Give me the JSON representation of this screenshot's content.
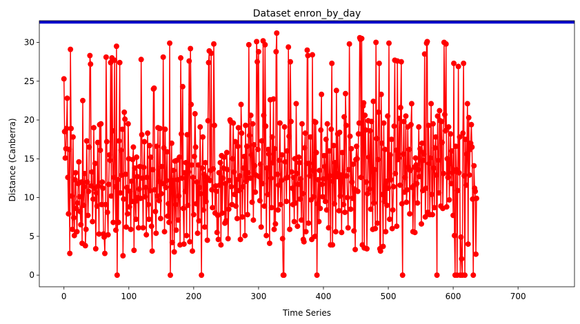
{
  "chart_data": {
    "type": "line",
    "title": "Dataset enron_by_day",
    "xlabel": "Time Series",
    "ylabel": "Distance (Canberra)",
    "xlim": [
      -38,
      787
    ],
    "ylim": [
      -1.5,
      32.8
    ],
    "xticks": [
      0,
      100,
      200,
      300,
      400,
      500,
      600,
      700
    ],
    "yticks": [
      0,
      5,
      10,
      15,
      20,
      25,
      30
    ],
    "grid": false,
    "legend": "none",
    "series": [
      {
        "color": "#ff0000",
        "marker": "circle",
        "x_start": 0,
        "x_step": 1,
        "values": [
          25.3,
          18.5,
          15.1,
          16.3,
          18.9,
          22.8,
          12.6,
          7.9,
          16.2,
          2.8,
          29.1,
          18.9,
          10.2,
          5.9,
          17.8,
          7.4,
          5.1,
          12.3,
          13.2,
          8.6,
          5.6,
          9.3,
          11.8,
          14.6,
          10.1,
          8.2,
          6.5,
          12.0,
          4.1,
          22.5,
          9.0,
          11.4,
          13.1,
          3.8,
          5.9,
          17.3,
          12.0,
          7.7,
          10.8,
          16.5,
          28.3,
          27.2,
          11.5,
          13.3,
          6.9,
          9.8,
          19.0,
          11.2,
          14.4,
          3.4,
          10.6,
          8.9,
          17.1,
          11.5,
          5.3,
          19.4,
          16.1,
          19.5,
          9.1,
          12.0,
          11.2,
          5.3,
          4.9,
          2.8,
          9.1,
          28.1,
          17.2,
          8.1,
          5.2,
          11.7,
          15.5,
          14.8,
          27.4,
          10.2,
          28.0,
          18.6,
          6.8,
          12.6,
          27.7,
          11.4,
          5.8,
          29.5,
          0.0,
          12.3,
          6.8,
          17.3,
          27.4,
          10.6,
          16.1,
          12.9,
          18.8,
          2.5,
          9.8,
          21.0,
          20.1,
          13.0,
          6.2,
          11.3,
          7.9,
          19.5,
          15.0,
          8.8,
          10.8,
          5.9,
          12.1,
          9.5,
          14.9,
          16.5,
          3.2,
          13.8,
          9.5,
          7.2,
          15.2,
          12.7,
          10.0,
          6.1,
          11.1,
          14.0,
          9.9,
          27.8,
          18.1,
          12.5,
          6.1,
          13.9,
          17.2,
          10.1,
          11.3,
          5.2,
          12.6,
          18.3,
          9.1,
          7.2,
          16.7,
          10.9,
          15.2,
          6.3,
          3.1,
          13.6,
          24.0,
          24.1,
          11.0,
          8.2,
          5.4,
          16.6,
          10.2,
          19.0,
          12.1,
          9.6,
          18.9,
          7.3,
          10.5,
          14.0,
          11.8,
          28.1,
          16.4,
          5.6,
          18.8,
          11.3,
          12.2,
          15.9,
          7.6,
          9.2,
          6.8,
          29.9,
          0.0,
          11.4,
          17.0,
          4.2,
          12.2,
          13.5,
          3.0,
          14.7,
          9.1,
          5.8,
          14.8,
          12.3,
          7.1,
          10.2,
          15.2,
          3.9,
          28.0,
          18.2,
          12.5,
          24.3,
          8.6,
          4.0,
          13.2,
          10.8,
          14.5,
          5.1,
          18.1,
          9.0,
          13.3,
          27.6,
          4.3,
          29.2,
          22.0,
          14.2,
          3.1,
          12.6,
          7.8,
          15.3,
          20.8,
          16.5,
          9.2,
          12.0,
          5.4,
          14.2,
          7.0,
          11.3,
          19.1,
          10.5,
          0.0,
          13.8,
          17.8,
          8.4,
          13.0,
          6.2,
          14.5,
          9.5,
          12.6,
          4.5,
          19.9,
          27.4,
          28.9,
          12.2,
          13.5,
          28.6,
          11.0,
          8.7,
          13.7,
          29.8,
          19.3,
          8.0,
          11.5,
          10.8,
          5.5,
          7.7,
          4.6,
          13.2,
          11.6,
          14.5,
          3.9,
          15.4,
          8.0,
          12.5,
          13.8,
          15.2,
          6.7,
          11.8,
          7.0,
          15.8,
          13.6,
          4.7,
          8.5,
          12.2,
          20.0,
          19.8,
          11.4,
          9.1,
          15.0,
          19.6,
          13.3,
          10.4,
          17.2,
          8.9,
          12.3,
          7.3,
          16.6,
          19.0,
          10.9,
          12.8,
          4.6,
          22.0,
          18.3,
          7.5,
          11.4,
          13.8,
          15.3,
          5.1,
          19.3,
          12.1,
          16.6,
          7.8,
          13.2,
          29.7,
          18.0,
          12.5,
          20.6,
          15.5,
          9.4,
          19.5,
          7.1,
          16.8,
          14.1,
          10.7,
          12.9,
          30.1,
          27.5,
          16.2,
          28.8,
          12.7,
          9.6,
          14.3,
          6.2,
          17.3,
          11.8,
          30.2,
          20.6,
          8.9,
          29.7,
          19.2,
          5.1,
          13.8,
          10.4,
          16.2,
          15.6,
          4.1,
          22.6,
          12.5,
          8.7,
          17.8,
          14.5,
          22.7,
          5.9,
          16.3,
          6.6,
          28.8,
          31.2,
          13.0,
          8.4,
          11.6,
          14.8,
          19.6,
          9.1,
          12.2,
          15.5,
          4.7,
          0.0,
          0.0,
          19.1,
          14.6,
          12.5,
          9.5,
          16.0,
          12.6,
          29.4,
          17.9,
          5.9,
          27.5,
          19.8,
          13.3,
          11.2,
          9.1,
          12.6,
          6.9,
          15.0,
          9.3,
          22.1,
          13.1,
          6.3,
          11.7,
          15.2,
          14.5,
          9.8,
          12.4,
          7.1,
          19.5,
          10.5,
          4.6,
          4.3,
          16.4,
          18.3,
          5.6,
          14.4,
          29.0,
          28.3,
          6.7,
          14.4,
          12.8,
          17.8,
          9.7,
          4.6,
          28.4,
          13.5,
          10.1,
          19.8,
          5.0,
          19.7,
          15.8,
          0.0,
          9.2,
          12.3,
          6.9,
          13.5,
          8.6,
          18.7,
          23.3,
          11.7,
          10.1,
          12.4,
          15.4,
          14.0,
          9.5,
          17.5,
          8.4,
          19.5,
          12.6,
          6.1,
          16.0,
          12.8,
          3.9,
          18.8,
          27.3,
          3.9,
          12.1,
          16.7,
          9.2,
          14.5,
          5.6,
          23.8,
          12.7,
          18.2,
          13.1,
          8.3,
          18.4,
          10.2,
          12.9,
          5.5,
          15.8,
          12.5,
          9.1,
          20.4,
          8.1,
          23.4,
          19.3,
          12.8,
          10.0,
          6.1,
          13.6,
          29.8,
          17.9,
          8.5,
          16.3,
          12.0,
          9.9,
          14.3,
          5.7,
          11.1,
          3.3,
          14.9,
          16.6,
          15.0,
          10.8,
          18.2,
          19.6,
          30.6,
          30.4,
          12.6,
          30.5,
          3.9,
          21.8,
          22.2,
          3.5,
          20.6,
          18.7,
          12.0,
          3.4,
          10.5,
          19.9,
          15.2,
          11.1,
          18.6,
          8.5,
          19.8,
          13.4,
          5.9,
          22.4,
          9.3,
          13.6,
          6.0,
          30.0,
          17.6,
          6.7,
          14.9,
          21.0,
          27.3,
          3.4,
          3.1,
          23.3,
          17.0,
          10.4,
          3.7,
          19.6,
          9.5,
          16.2,
          5.6,
          12.1,
          9.0,
          20.5,
          11.2,
          29.9,
          7.2,
          15.5,
          12.3,
          17.5,
          6.0,
          8.4,
          11.4,
          19.2,
          27.7,
          13.1,
          16.1,
          6.3,
          27.6,
          14.9,
          15.1,
          20.2,
          11.6,
          21.6,
          27.5,
          9.2,
          0.0,
          15.6,
          19.8,
          10.7,
          12.6,
          20.5,
          9.4,
          11.0,
          19.1,
          13.9,
          16.2,
          7.9,
          13.5,
          19.4,
          22.1,
          11.3,
          5.6,
          11.5,
          13.9,
          5.5,
          15.1,
          14.2,
          11.8,
          9.3,
          13.6,
          19.1,
          12.7,
          16.3,
          16.0,
          6.6,
          17.0,
          10.9,
          14.8,
          15.6,
          28.5,
          7.5,
          11.2,
          29.9,
          30.1,
          8.1,
          19.3,
          14.4,
          7.8,
          15.1,
          22.1,
          10.4,
          7.8,
          19.5,
          13.8,
          8.7,
          16.4,
          17.8,
          12.9,
          0.0,
          20.5,
          14.8,
          10.6,
          21.2,
          19.9,
          8.9,
          19.8,
          17.1,
          8.6,
          13.1,
          30.0,
          20.7,
          18.6,
          29.8,
          8.8,
          15.0,
          12.6,
          19.1,
          9.7,
          14.4,
          18.2,
          11.8,
          16.0,
          13.2,
          7.7,
          27.3,
          5.1,
          0.0,
          16.6,
          13.6,
          0.0,
          10.9,
          26.9,
          13.2,
          17.8,
          0.0,
          4.9,
          2.1,
          0.0,
          18.3,
          27.3,
          12.8,
          0.0,
          17.5,
          11.6,
          15.6,
          22.1,
          4.0,
          20.3,
          12.9,
          16.2,
          17.0,
          19.4,
          16.5,
          9.8,
          0.0,
          14.1,
          11.2,
          10.8,
          2.7,
          9.9
        ]
      }
    ],
    "reference_lines": [
      {
        "y": 32.6,
        "color": "#0000cd"
      }
    ]
  }
}
